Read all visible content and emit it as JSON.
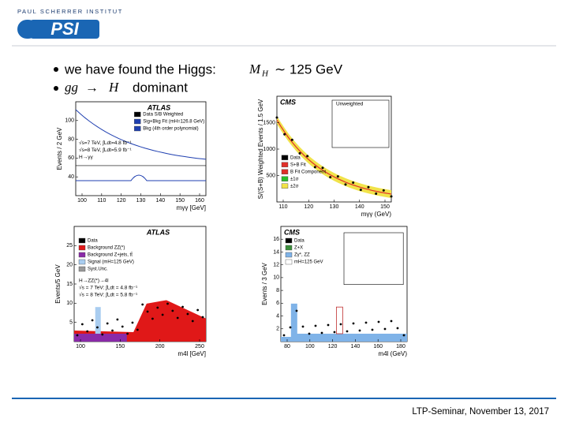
{
  "header": {
    "institute": "PAUL SCHERRER INSTITUT",
    "logo": "PSI"
  },
  "bullets": [
    {
      "text": "we have found the Higgs:",
      "math": [
        "M",
        "H",
        "∼ 125 GeV"
      ]
    },
    {
      "math": [
        "gg",
        "→",
        "H"
      ],
      "text": "dominant"
    }
  ],
  "plots": [
    {
      "experiment": "ATLAS",
      "y_label": "Events / 2 GeV",
      "x_label": "mγγ [GeV]",
      "y_ticks": [
        "40",
        "60",
        "80",
        "100"
      ],
      "x_ticks": [
        "100",
        "110",
        "120",
        "130",
        "140",
        "150",
        "160"
      ],
      "legend": [
        "Data S/B Weighted",
        "Sig+Bkg Fit (mH=126.8 GeV)",
        "Bkg (4th order polynomial)"
      ],
      "notes": [
        "√s=7 TeV, ∫Ldt=4.8 fb⁻¹",
        "√s=8 TeV, ∫Ldt=5.9 fb⁻¹",
        "H→γγ"
      ]
    },
    {
      "experiment": "CMS",
      "y_label": "S/(S+B) Weighted Events / 1.5 GeV",
      "x_label": "mγγ (GeV)",
      "y_ticks": [
        "500",
        "1000",
        "1500"
      ],
      "x_ticks": [
        "110",
        "120",
        "130",
        "140",
        "150"
      ],
      "legend": [
        "Data",
        "S+B Fit",
        "B Fit Component",
        "±1σ",
        "±2σ"
      ],
      "notes": [
        "Unweighted"
      ]
    },
    {
      "experiment": "ATLAS",
      "y_label": "Events/5 GeV",
      "x_label": "m4l [GeV]",
      "y_ticks": [
        "5",
        "10",
        "15",
        "20",
        "25"
      ],
      "x_ticks": [
        "100",
        "150",
        "200",
        "250"
      ],
      "legend": [
        "Data",
        "Background ZZ(*)",
        "Background Z+jets, tt̄",
        "Signal (mH=125 GeV)",
        "Syst.Unc."
      ],
      "notes": [
        "H→ZZ(*)→4l",
        "√s = 7 TeV: ∫Ldt = 4.8 fb⁻¹",
        "√s = 8 TeV: ∫Ldt = 5.8 fb⁻¹"
      ]
    },
    {
      "experiment": "CMS",
      "y_label": "Events / 3 GeV",
      "x_label": "m4l (GeV)",
      "y_ticks": [
        "2",
        "4",
        "6",
        "8",
        "10",
        "12",
        "14",
        "16"
      ],
      "x_ticks": [
        "80",
        "100",
        "120",
        "140",
        "160",
        "180"
      ],
      "legend": [
        "Data",
        "Z+X",
        "Zγ*, ZZ",
        "mH=125 GeV"
      ],
      "notes": []
    }
  ],
  "footer": "LTP-Seminar, November 13, 2017"
}
